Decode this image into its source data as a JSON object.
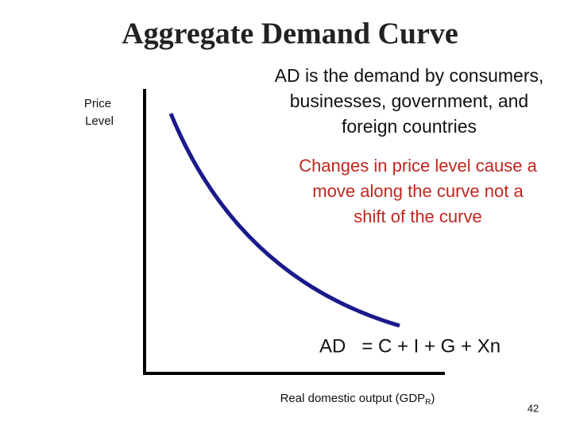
{
  "title": "Aggregate Demand Curve",
  "y_axis_label": [
    "Price",
    "Level"
  ],
  "definition": [
    "AD is the demand by consumers,",
    "businesses, government, and",
    "foreign countries"
  ],
  "note": [
    "Changes in price level cause a",
    "move along the curve not a",
    "shift of the curve"
  ],
  "equation": "AD   = C + I + G + Xn",
  "x_axis_label": {
    "text": "Real domestic output (GDP",
    "subscript": "R",
    "end": ")"
  },
  "page_number": "42"
}
